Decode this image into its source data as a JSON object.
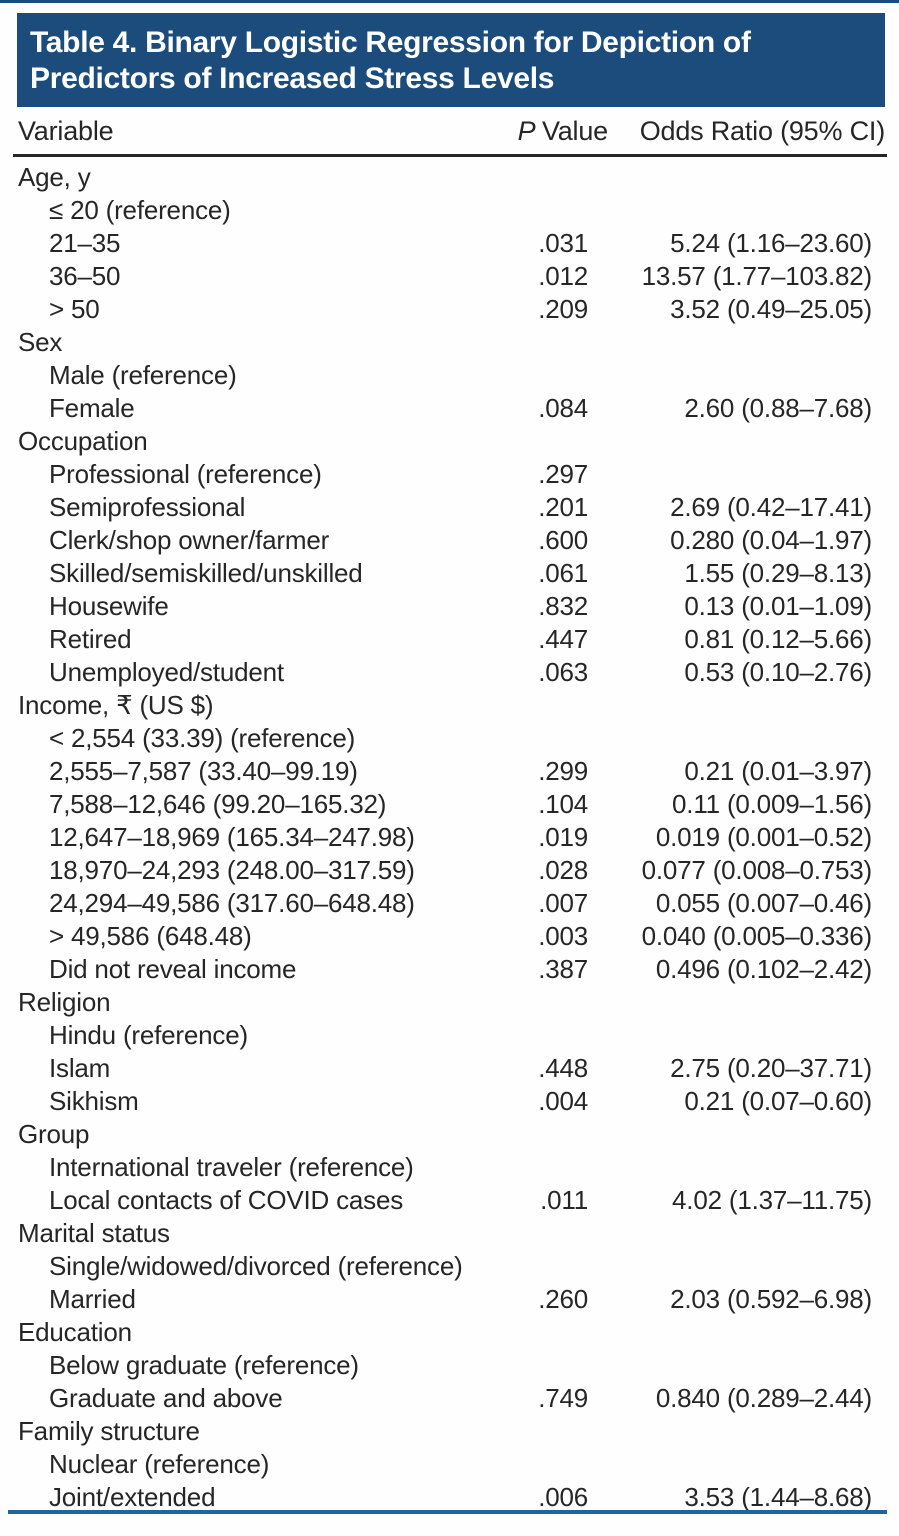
{
  "table": {
    "title_line1": "Table 4. Binary Logistic Regression for Depiction of",
    "title_line2": "Predictors of Increased Stress Levels",
    "columns": {
      "variable": "Variable",
      "p_italic": "P",
      "p_rest": "Value",
      "odds": "Odds Ratio (95% CI)"
    },
    "rows": [
      {
        "label": "Age, y",
        "indent": 0,
        "p": "",
        "or": ""
      },
      {
        "label": "≤ 20 (reference)",
        "indent": 1,
        "p": "",
        "or": ""
      },
      {
        "label": "21–35",
        "indent": 1,
        "p": ".031",
        "or": "5.24 (1.16–23.60)"
      },
      {
        "label": "36–50",
        "indent": 1,
        "p": ".012",
        "or": "13.57 (1.77–103.82)"
      },
      {
        "label": "> 50",
        "indent": 1,
        "p": ".209",
        "or": "3.52 (0.49–25.05)"
      },
      {
        "label": "Sex",
        "indent": 0,
        "p": "",
        "or": ""
      },
      {
        "label": "Male (reference)",
        "indent": 1,
        "p": "",
        "or": ""
      },
      {
        "label": "Female",
        "indent": 1,
        "p": ".084",
        "or": "2.60 (0.88–7.68)"
      },
      {
        "label": "Occupation",
        "indent": 0,
        "p": "",
        "or": ""
      },
      {
        "label": "Professional (reference)",
        "indent": 1,
        "p": ".297",
        "or": ""
      },
      {
        "label": "Semiprofessional",
        "indent": 1,
        "p": ".201",
        "or": "2.69 (0.42–17.41)"
      },
      {
        "label": "Clerk/shop owner/farmer",
        "indent": 1,
        "p": ".600",
        "or": "0.280 (0.04–1.97)"
      },
      {
        "label": "Skilled/semiskilled/unskilled",
        "indent": 1,
        "p": ".061",
        "or": "1.55 (0.29–8.13)"
      },
      {
        "label": "Housewife",
        "indent": 1,
        "p": ".832",
        "or": "0.13 (0.01–1.09)"
      },
      {
        "label": "Retired",
        "indent": 1,
        "p": ".447",
        "or": "0.81 (0.12–5.66)"
      },
      {
        "label": "Unemployed/student",
        "indent": 1,
        "p": ".063",
        "or": "0.53 (0.10–2.76)"
      },
      {
        "label": "Income, ₹ (US $)",
        "indent": 0,
        "p": "",
        "or": ""
      },
      {
        "label": "< 2,554 (33.39) (reference)",
        "indent": 1,
        "p": "",
        "or": ""
      },
      {
        "label": "2,555–7,587 (33.40–99.19)",
        "indent": 1,
        "p": ".299",
        "or": "0.21 (0.01–3.97)"
      },
      {
        "label": "7,588–12,646 (99.20–165.32)",
        "indent": 1,
        "p": ".104",
        "or": "0.11 (0.009–1.56)"
      },
      {
        "label": "12,647–18,969 (165.34–247.98)",
        "indent": 1,
        "p": ".019",
        "or": "0.019 (0.001–0.52)"
      },
      {
        "label": "18,970–24,293 (248.00–317.59)",
        "indent": 1,
        "p": ".028",
        "or": "0.077 (0.008–0.753)"
      },
      {
        "label": "24,294–49,586 (317.60–648.48)",
        "indent": 1,
        "p": ".007",
        "or": "0.055 (0.007–0.46)"
      },
      {
        "label": "> 49,586 (648.48)",
        "indent": 1,
        "p": ".003",
        "or": "0.040 (0.005–0.336)"
      },
      {
        "label": "Did not reveal income",
        "indent": 1,
        "p": ".387",
        "or": "0.496 (0.102–2.42)"
      },
      {
        "label": "Religion",
        "indent": 0,
        "p": "",
        "or": ""
      },
      {
        "label": "Hindu (reference)",
        "indent": 1,
        "p": "",
        "or": ""
      },
      {
        "label": "Islam",
        "indent": 1,
        "p": ".448",
        "or": "2.75 (0.20–37.71)"
      },
      {
        "label": "Sikhism",
        "indent": 1,
        "p": ".004",
        "or": "0.21 (0.07–0.60)"
      },
      {
        "label": "Group",
        "indent": 0,
        "p": "",
        "or": ""
      },
      {
        "label": "International traveler (reference)",
        "indent": 1,
        "p": "",
        "or": ""
      },
      {
        "label": "Local contacts of COVID cases",
        "indent": 1,
        "p": ".011",
        "or": "4.02 (1.37–11.75)"
      },
      {
        "label": "Marital status",
        "indent": 0,
        "p": "",
        "or": ""
      },
      {
        "label": "Single/widowed/divorced (reference)",
        "indent": 1,
        "p": "",
        "or": ""
      },
      {
        "label": "Married",
        "indent": 1,
        "p": ".260",
        "or": "2.03 (0.592–6.98)"
      },
      {
        "label": "Education",
        "indent": 0,
        "p": "",
        "or": ""
      },
      {
        "label": "Below graduate (reference)",
        "indent": 1,
        "p": "",
        "or": ""
      },
      {
        "label": "Graduate and above",
        "indent": 1,
        "p": ".749",
        "or": "0.840 (0.289–2.44)"
      },
      {
        "label": "Family structure",
        "indent": 0,
        "p": "",
        "or": ""
      },
      {
        "label": "Nuclear (reference)",
        "indent": 1,
        "p": "",
        "or": ""
      },
      {
        "label": "Joint/extended",
        "indent": 1,
        "p": ".006",
        "or": "3.53 (1.44–8.68)"
      }
    ]
  },
  "colors": {
    "header_bg": "#1c4c7c",
    "top_rule": "#1c4c7c",
    "bottom_rule": "#20669c",
    "rule_black": "#262626",
    "text": "#262626",
    "title_text": "#ffffff"
  }
}
